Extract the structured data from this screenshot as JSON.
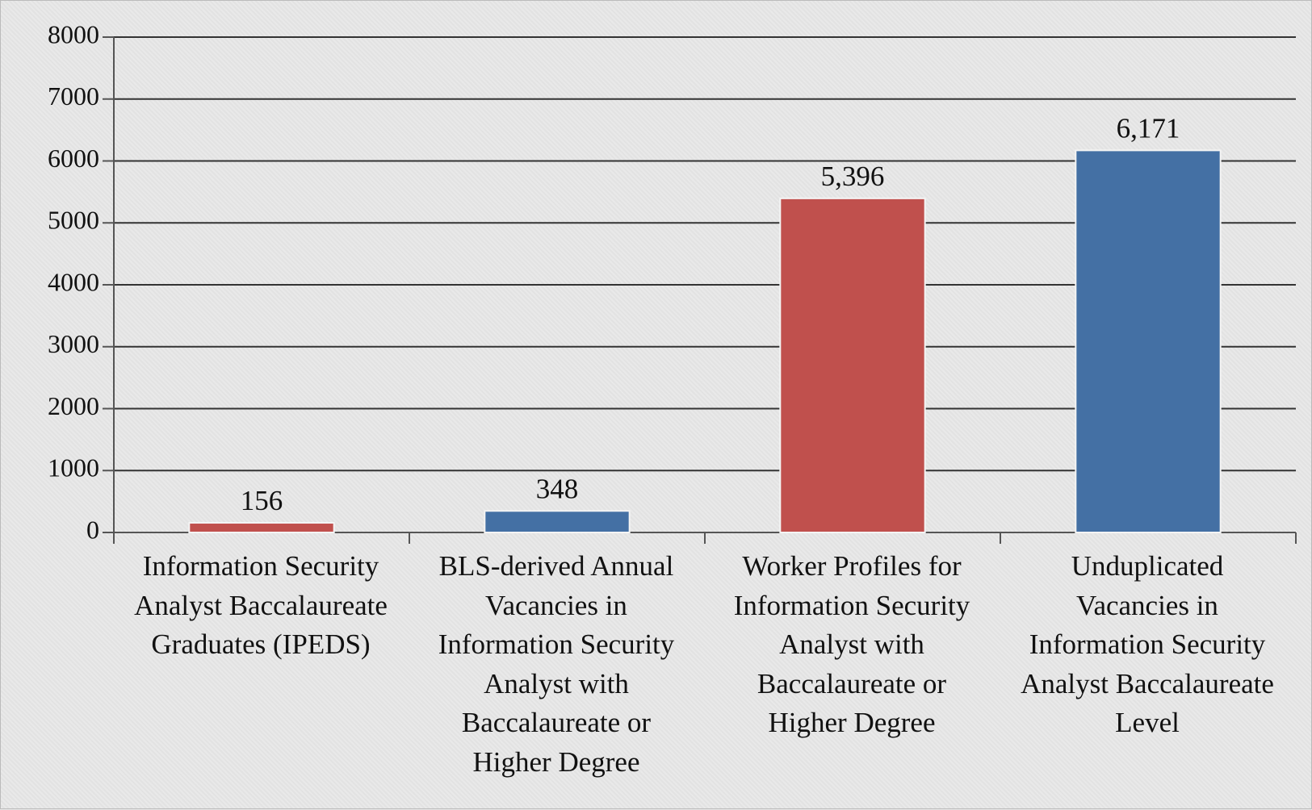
{
  "chart_data": {
    "type": "bar",
    "categories": [
      "Information Security\nAnalyst Baccalaureate\nGraduates (IPEDS)",
      "BLS-derived Annual\nVacancies in\nInformation Security\nAnalyst with\nBaccalaureate or\nHigher Degree",
      "Worker Profiles for\nInformation Security\nAnalyst with\nBaccalaureate or\nHigher Degree",
      "Unduplicated\nVacancies in\nInformation Security\nAnalyst Baccalaureate\nLevel"
    ],
    "values": [
      156,
      348,
      5396,
      6171
    ],
    "value_labels": [
      "156",
      "348",
      "5,396",
      "6,171"
    ],
    "colors": [
      "#c0504d",
      "#4470a4",
      "#c0504d",
      "#4470a4"
    ],
    "ylim": [
      0,
      8000
    ],
    "yticks": [
      0,
      1000,
      2000,
      3000,
      4000,
      5000,
      6000,
      7000,
      8000
    ],
    "grid": true
  }
}
